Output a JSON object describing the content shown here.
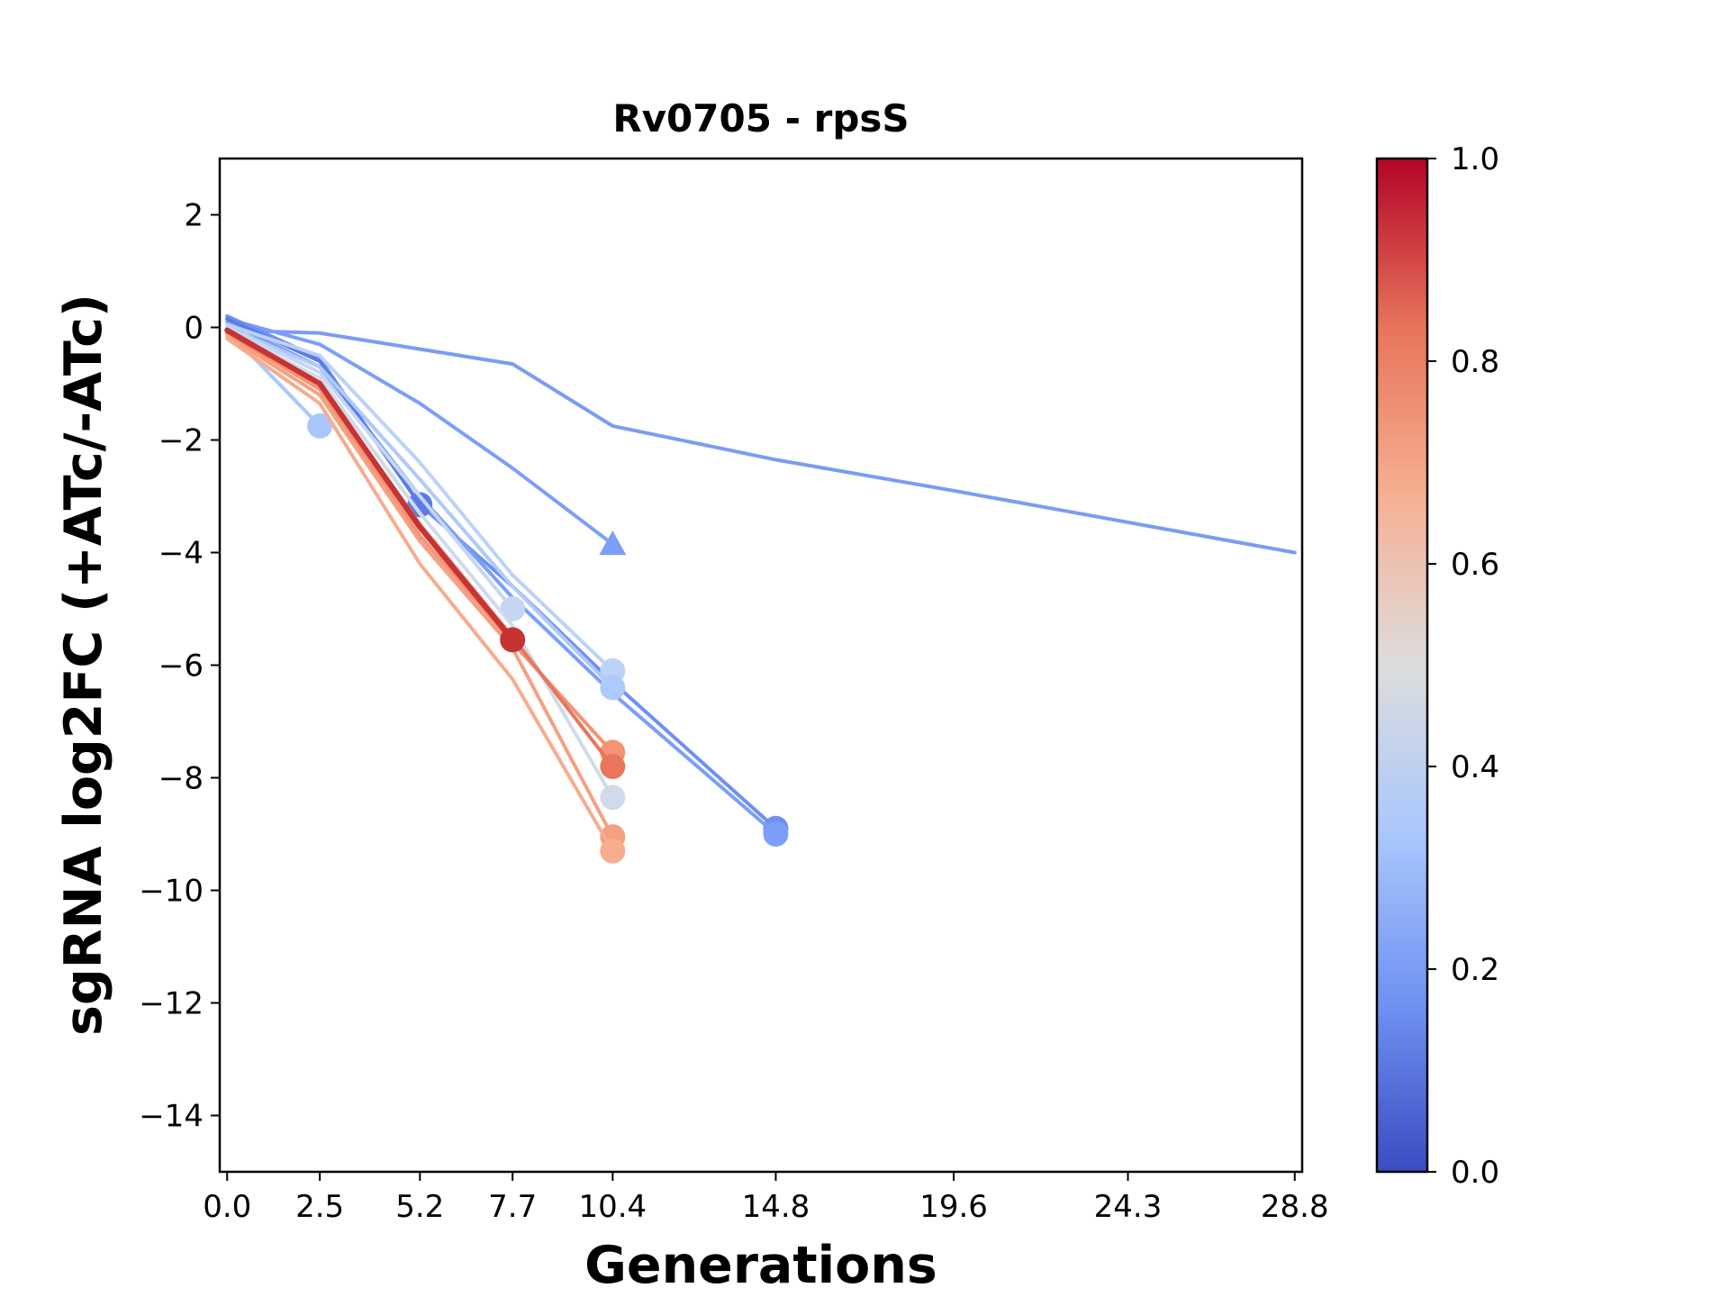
{
  "chart_data": {
    "type": "line",
    "title": "Rv0705 - rpsS",
    "xlabel": "Generations",
    "ylabel": "sgRNA log2FC (+ATc/-ATc)",
    "x_ticks": [
      0.0,
      2.5,
      5.2,
      7.7,
      10.4,
      14.8,
      19.6,
      24.3,
      28.8
    ],
    "x_tick_labels": [
      "0.0",
      "2.5",
      "5.2",
      "7.7",
      "10.4",
      "14.8",
      "19.6",
      "24.3",
      "28.8"
    ],
    "xlim": [
      -0.2,
      29.0
    ],
    "ylim": [
      -15,
      3
    ],
    "y_ticks": [
      2,
      0,
      -2,
      -4,
      -6,
      -8,
      -10,
      -12,
      -14
    ],
    "y_tick_labels": [
      "2",
      "0",
      "−2",
      "−4",
      "−6",
      "−8",
      "−10",
      "−12",
      "−14"
    ],
    "grid": false,
    "legend": "none",
    "colorbar": {
      "colormap": "coolwarm",
      "range": [
        0.0,
        1.0
      ],
      "ticks": [
        0.0,
        0.2,
        0.4,
        0.6,
        0.8,
        1.0
      ],
      "tick_labels": [
        "0.0",
        "0.2",
        "0.4",
        "0.6",
        "0.8",
        "1.0"
      ],
      "stops": [
        "#3b4cc0",
        "#6f92f3",
        "#aac7fd",
        "#dddddd",
        "#f7b093",
        "#e7745b",
        "#b40426"
      ]
    },
    "series": [
      {
        "x": [
          0.0,
          2.5,
          7.7,
          10.4,
          14.8,
          19.6,
          28.8
        ],
        "y": [
          -0.05,
          -0.1,
          -0.65,
          -1.75,
          -2.35,
          -2.9,
          -4.0
        ],
        "color": "#7a9cf2",
        "marker": "none",
        "width": 4
      },
      {
        "x": [
          0.0,
          2.5,
          5.2,
          7.7,
          10.4
        ],
        "y": [
          0.15,
          -0.3,
          -1.35,
          -2.5,
          -3.85
        ],
        "color": "#7b9ff9",
        "marker": "triangle",
        "width": 4
      },
      {
        "x": [
          0.0,
          2.5,
          5.2,
          7.7,
          10.4,
          14.8
        ],
        "y": [
          0.2,
          -0.55,
          -3.15,
          -4.6,
          -6.3,
          -8.9
        ],
        "color": "#6e90f2",
        "marker": "circle",
        "width": 4
      },
      {
        "x": [
          0.0,
          2.5,
          5.2,
          7.7,
          10.4,
          14.8
        ],
        "y": [
          0.1,
          -0.7,
          -3.0,
          -4.8,
          -6.5,
          -9.0
        ],
        "color": "#7b9ff9",
        "marker": "circle",
        "width": 4
      },
      {
        "x": [
          0.0,
          2.5,
          5.2
        ],
        "y": [
          0.15,
          -0.6,
          -3.15
        ],
        "color": "#5b7ce6",
        "marker": "circle",
        "width": 4
      },
      {
        "x": [
          0.0,
          2.5
        ],
        "y": [
          -0.05,
          -1.75
        ],
        "color": "#aac7fd",
        "marker": "circle",
        "width": 4
      },
      {
        "x": [
          0.0,
          2.5,
          5.2,
          7.7,
          10.4
        ],
        "y": [
          0.05,
          -0.5,
          -2.4,
          -4.4,
          -6.1
        ],
        "color": "#bcd2f7",
        "marker": "circle",
        "width": 4
      },
      {
        "x": [
          0.0,
          2.5,
          5.2,
          7.7,
          10.4
        ],
        "y": [
          0.0,
          -0.7,
          -2.7,
          -4.6,
          -6.4
        ],
        "color": "#aec9fc",
        "marker": "circle",
        "width": 4
      },
      {
        "x": [
          0.0,
          2.5,
          5.2,
          7.7
        ],
        "y": [
          0.0,
          -0.8,
          -3.0,
          -5.0
        ],
        "color": "#c5d6f2",
        "marker": "circle",
        "width": 4
      },
      {
        "x": [
          0.0,
          2.5,
          5.2,
          7.7,
          10.4
        ],
        "y": [
          -0.05,
          -0.9,
          -3.3,
          -5.3,
          -8.35
        ],
        "color": "#d1dae9",
        "marker": "circle",
        "width": 4
      },
      {
        "x": [
          0.0,
          2.5,
          5.2,
          7.7,
          10.4
        ],
        "y": [
          -0.1,
          -1.1,
          -3.7,
          -5.6,
          -7.55
        ],
        "color": "#f39475",
        "marker": "circle",
        "width": 4
      },
      {
        "x": [
          0.0,
          2.5,
          5.2,
          7.7,
          10.4
        ],
        "y": [
          -0.1,
          -1.0,
          -3.5,
          -5.5,
          -7.8
        ],
        "color": "#e8765c",
        "marker": "circle",
        "width": 4
      },
      {
        "x": [
          0.0,
          2.5,
          5.2,
          7.7,
          10.4
        ],
        "y": [
          -0.15,
          -1.2,
          -3.8,
          -5.7,
          -9.05
        ],
        "color": "#f5a081",
        "marker": "circle",
        "width": 4
      },
      {
        "x": [
          0.0,
          2.5,
          5.2,
          7.7,
          10.4
        ],
        "y": [
          -0.2,
          -1.35,
          -4.2,
          -6.25,
          -9.3
        ],
        "color": "#f7ac8e",
        "marker": "circle",
        "width": 4
      },
      {
        "x": [
          0.0,
          2.5,
          5.2,
          7.7
        ],
        "y": [
          -0.05,
          -1.0,
          -3.55,
          -5.55
        ],
        "color": "#c53334",
        "marker": "circle",
        "width": 6
      }
    ]
  }
}
